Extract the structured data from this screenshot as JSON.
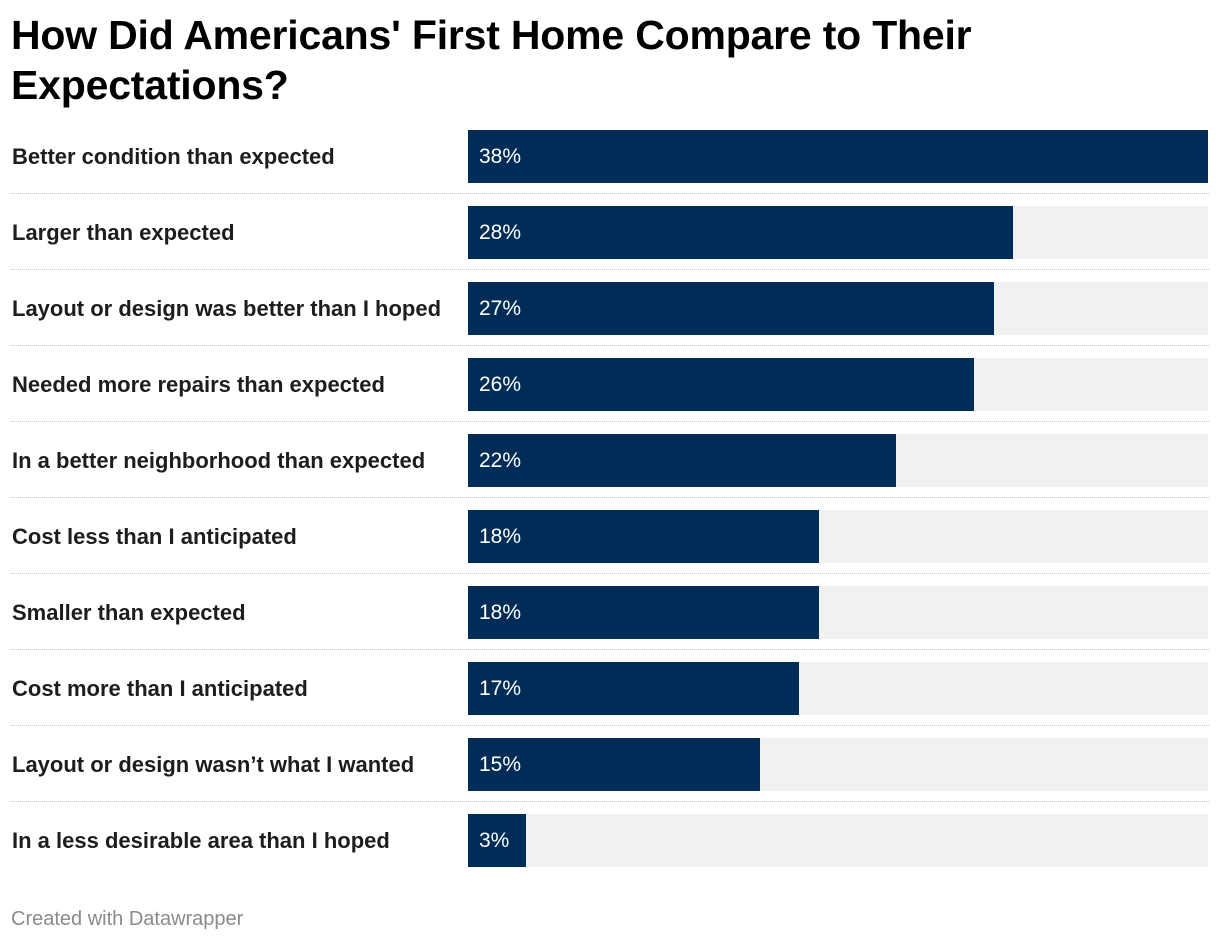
{
  "colors": {
    "bar": "#002d57",
    "track": "#f1f1f1",
    "value_text": "#ffffff",
    "divider": "#c9c9c9"
  },
  "chart_data": {
    "type": "bar",
    "orientation": "horizontal",
    "title": "How Did Americans' First Home Compare to Their Expectations?",
    "categories": [
      "Better condition than expected",
      "Larger than expected",
      "Layout or design was better than I hoped",
      "Needed more repairs than expected",
      "In a better neighborhood than expected",
      "Cost less than I anticipated",
      "Smaller than expected",
      "Cost more than I anticipated",
      "Layout or design wasn’t what I wanted",
      "In a less desirable area than I hoped"
    ],
    "values": [
      38,
      28,
      27,
      26,
      22,
      18,
      18,
      17,
      15,
      3
    ],
    "value_labels": [
      "38%",
      "28%",
      "27%",
      "26%",
      "22%",
      "18%",
      "18%",
      "17%",
      "15%",
      "3%"
    ],
    "unit": "%",
    "xlim": [
      0,
      38
    ],
    "grid": false,
    "legend": "none"
  },
  "footer": {
    "credit": "Created with Datawrapper"
  }
}
